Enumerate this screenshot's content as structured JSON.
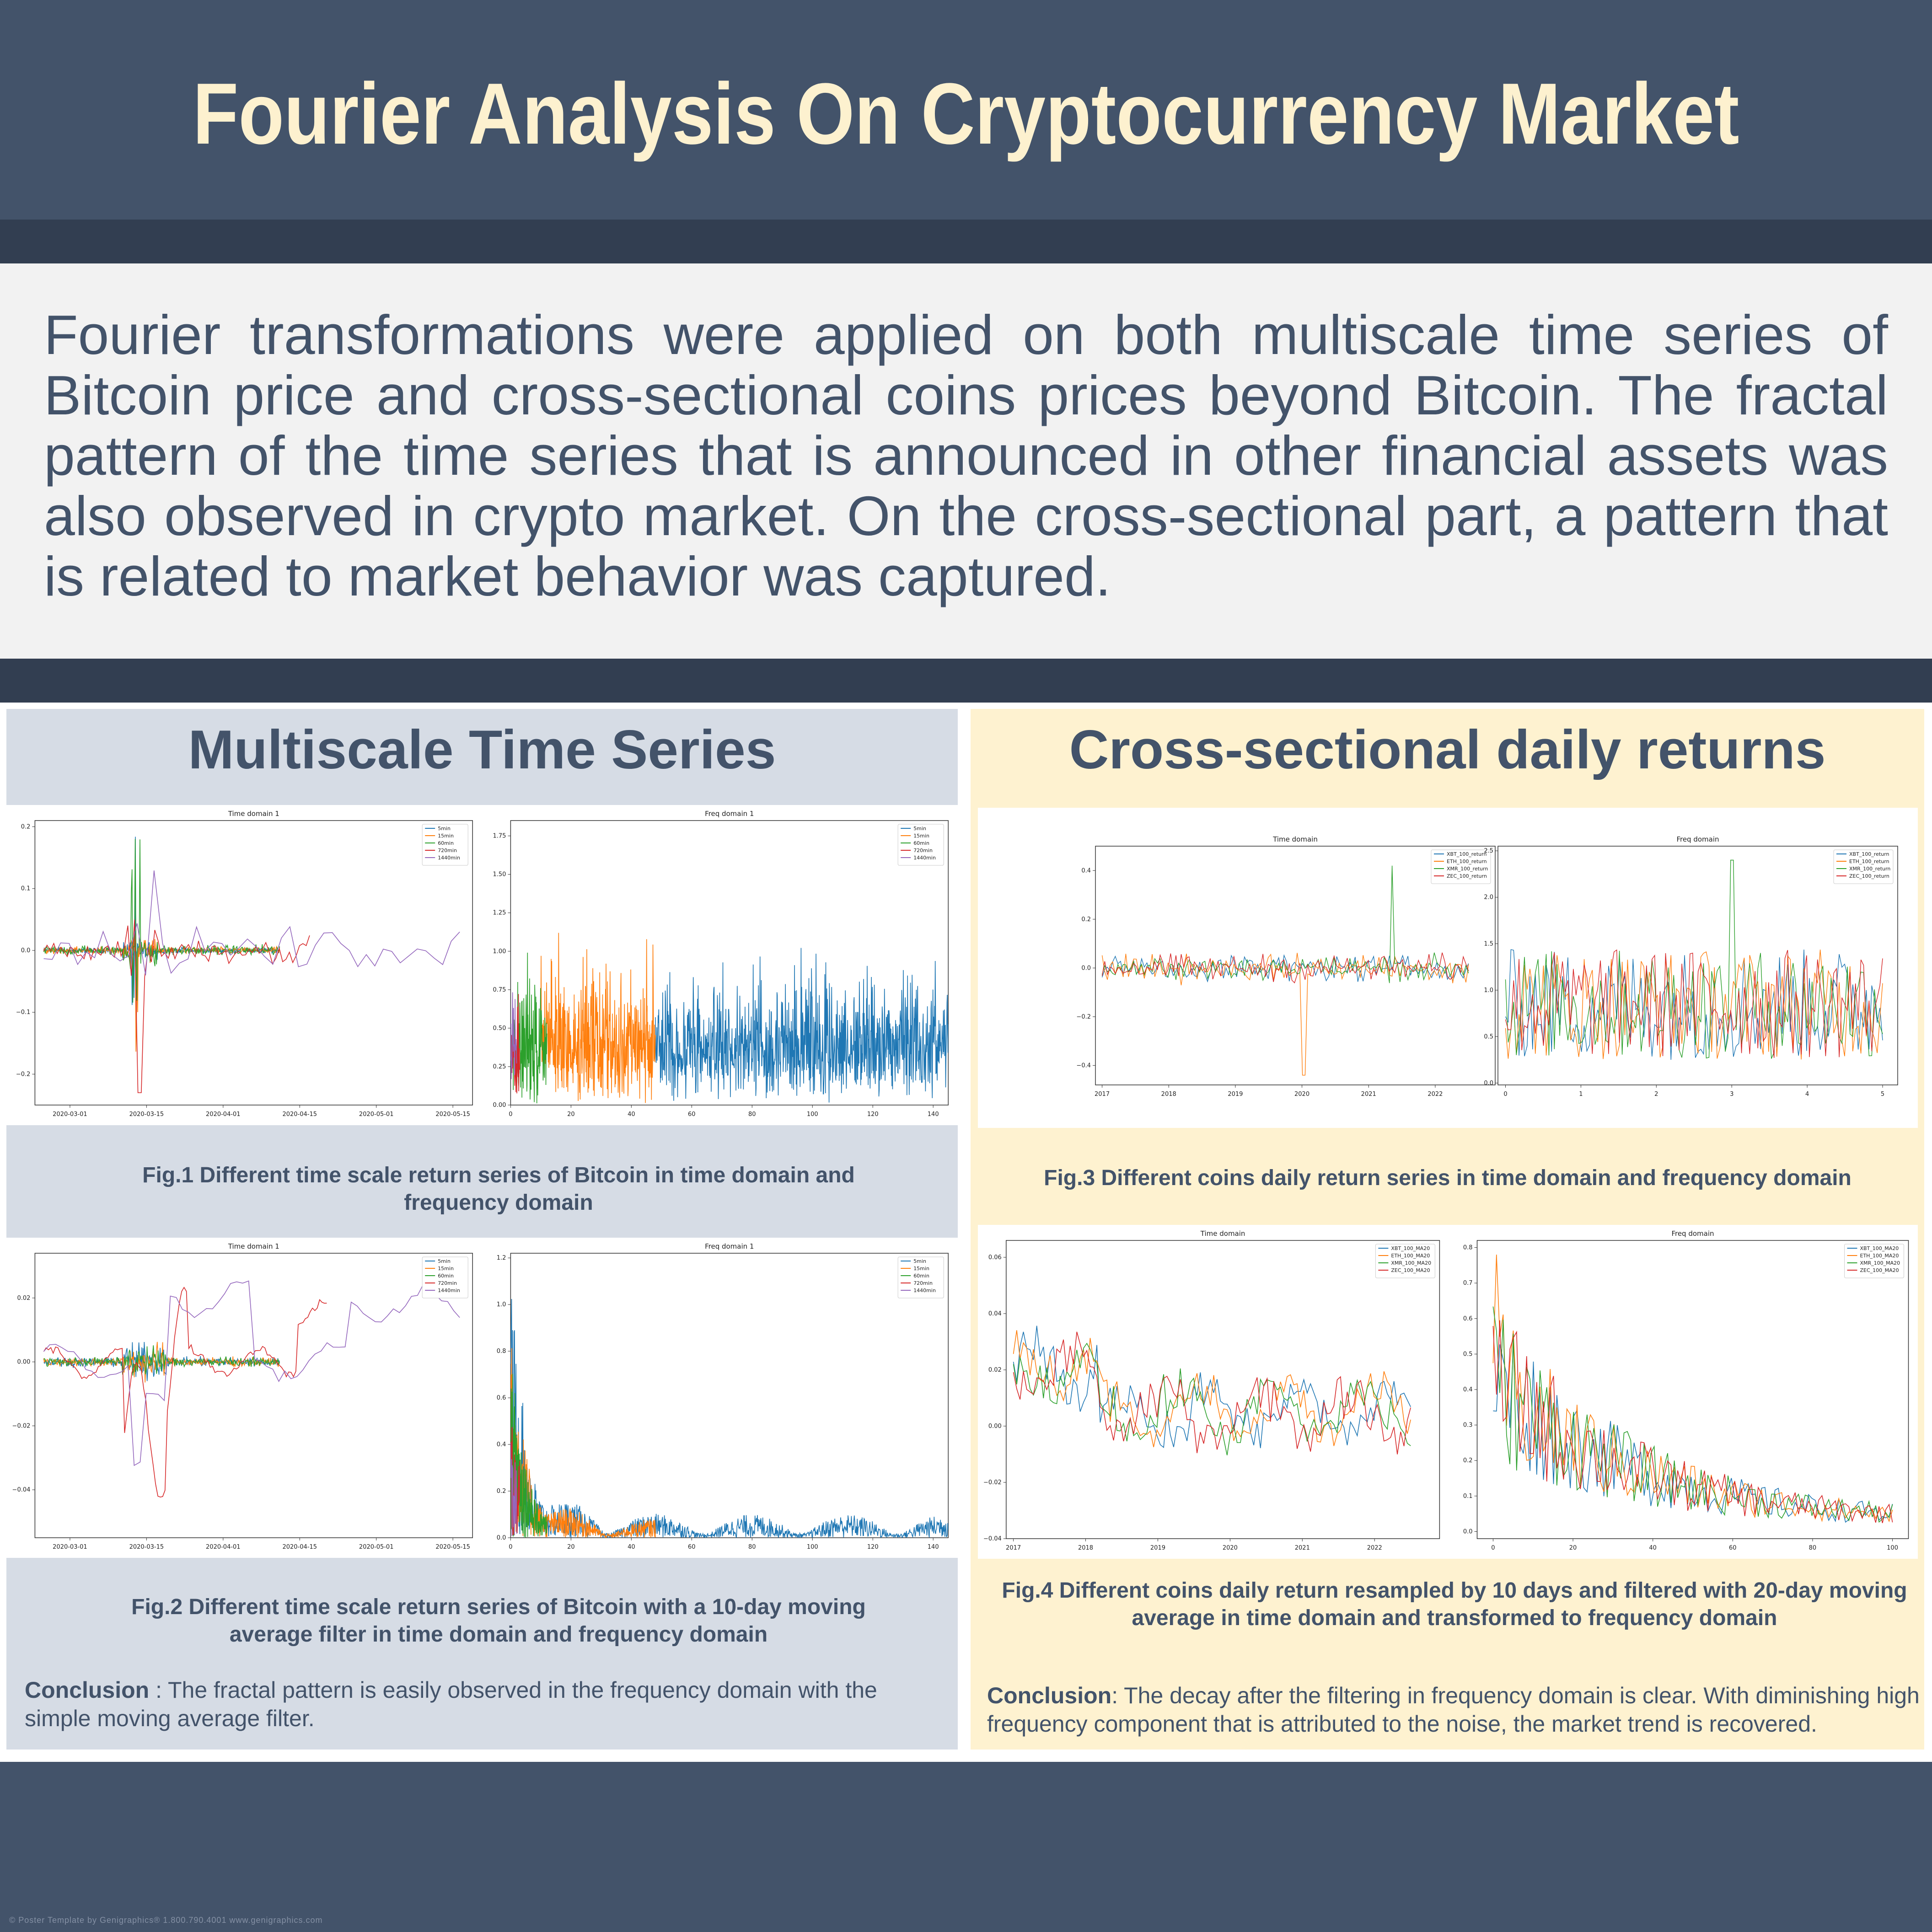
{
  "title": "Fourier Analysis On Cryptocurrency Market",
  "abstract": "Fourier transformations were applied on both multiscale time series of Bitcoin price and cross-sectional coins prices beyond Bitcoin. The fractal pattern of the time series that is announced in other financial assets was also observed in crypto market. On the cross-sectional part, a pattern that is related to market behavior was captured.",
  "left": {
    "heading": "Multiscale Time Series",
    "fig1_caption": "Fig.1 Different time scale return series of Bitcoin in time domain and frequency domain",
    "fig2_caption": "Fig.2 Different time scale return series of Bitcoin with a 10-day moving average filter in time domain and frequency domain",
    "conclusion_label": "Conclusion",
    "conclusion_text": " : The fractal pattern is easily observed in the frequency domain with the simple moving average filter."
  },
  "right": {
    "heading": "Cross-sectional daily returns",
    "fig3_caption": "Fig.3 Different coins daily return series in time domain and frequency domain",
    "fig4_caption": "Fig.4 Different coins daily return resampled by 10 days and filtered with 20-day moving average in time domain and transformed to frequency domain",
    "conclusion_label": "Conclusion",
    "conclusion_text": ": The decay after the filtering in frequency domain is clear. With diminishing high frequency component that is attributed to the noise,  the market trend is recovered."
  },
  "footer": "© Poster Template by Genigraphics® 1.800.790.4001 www.genigraphics.com",
  "colors": {
    "header_bg": "#43536a",
    "stripe": "#323e51",
    "title": "#fdf1cf",
    "left_panel": "#d6dce5",
    "right_panel": "#fef2d0",
    "c_blue": "#1f77b4",
    "c_orange": "#ff7f0e",
    "c_green": "#2ca02c",
    "c_red": "#d62728",
    "c_purple": "#9467bd"
  },
  "chart_data": [
    {
      "id": "fig1_time",
      "type": "line",
      "title": "Time domain 1",
      "x_type": "date",
      "xticks": [
        "2020-03-01",
        "2020-03-15",
        "2020-04-01",
        "2020-04-15",
        "2020-05-01",
        "2020-05-15"
      ],
      "yticks": [
        "0.2",
        "0.1",
        "0.0",
        "−0.1",
        "−0.2"
      ],
      "ylim": [
        -0.25,
        0.21
      ],
      "legend": "top-right",
      "series": [
        {
          "name": "5min",
          "color": "#1f77b4"
        },
        {
          "name": "15min",
          "color": "#ff7f0e"
        },
        {
          "name": "60min",
          "color": "#2ca02c"
        },
        {
          "name": "720min",
          "color": "#d62728"
        },
        {
          "name": "1440min",
          "color": "#9467bd"
        }
      ]
    },
    {
      "id": "fig1_freq",
      "type": "line",
      "title": "Freq domain 1",
      "xticks": [
        "0",
        "20",
        "40",
        "60",
        "80",
        "100",
        "120",
        "140"
      ],
      "xlim": [
        0,
        145
      ],
      "yticks": [
        "1.75",
        "1.50",
        "1.25",
        "1.00",
        "0.75",
        "0.50",
        "0.25",
        "0.00"
      ],
      "ylim": [
        0,
        1.85
      ],
      "legend": "top-right",
      "series": [
        {
          "name": "5min",
          "color": "#1f77b4"
        },
        {
          "name": "15min",
          "color": "#ff7f0e"
        },
        {
          "name": "60min",
          "color": "#2ca02c"
        },
        {
          "name": "720min",
          "color": "#d62728"
        },
        {
          "name": "1440min",
          "color": "#9467bd"
        }
      ]
    },
    {
      "id": "fig2_time",
      "type": "line",
      "title": "Time domain 1",
      "x_type": "date",
      "xticks": [
        "2020-03-01",
        "2020-03-15",
        "2020-04-01",
        "2020-04-15",
        "2020-05-01",
        "2020-05-15"
      ],
      "yticks": [
        "0.02",
        "0.00",
        "−0.02",
        "−0.04"
      ],
      "ylim": [
        -0.055,
        0.034
      ],
      "legend": "top-right",
      "series": [
        {
          "name": "5min",
          "color": "#1f77b4"
        },
        {
          "name": "15min",
          "color": "#ff7f0e"
        },
        {
          "name": "60min",
          "color": "#2ca02c"
        },
        {
          "name": "720min",
          "color": "#d62728"
        },
        {
          "name": "1440min",
          "color": "#9467bd"
        }
      ]
    },
    {
      "id": "fig2_freq",
      "type": "line",
      "title": "Freq domain 1",
      "xticks": [
        "0",
        "20",
        "40",
        "60",
        "80",
        "100",
        "120",
        "140"
      ],
      "xlim": [
        0,
        145
      ],
      "yticks": [
        "1.2",
        "1.0",
        "0.8",
        "0.6",
        "0.4",
        "0.2",
        "0.0"
      ],
      "ylim": [
        0,
        1.22
      ],
      "legend": "top-right",
      "series": [
        {
          "name": "5min",
          "color": "#1f77b4"
        },
        {
          "name": "15min",
          "color": "#ff7f0e"
        },
        {
          "name": "60min",
          "color": "#2ca02c"
        },
        {
          "name": "720min",
          "color": "#d62728"
        },
        {
          "name": "1440min",
          "color": "#9467bd"
        }
      ]
    },
    {
      "id": "fig3_time",
      "type": "line",
      "title": "Time domain",
      "x_type": "year",
      "xticks": [
        "2017",
        "2018",
        "2019",
        "2020",
        "2021",
        "2022"
      ],
      "yticks": [
        "0.4",
        "0.2",
        "0.0",
        "−0.2",
        "−0.4"
      ],
      "ylim": [
        -0.48,
        0.5
      ],
      "legend": "top-right",
      "series": [
        {
          "name": "XBT_100_return",
          "color": "#1f77b4"
        },
        {
          "name": "ETH_100_return",
          "color": "#ff7f0e"
        },
        {
          "name": "XMR_100_return",
          "color": "#2ca02c"
        },
        {
          "name": "ZEC_100_return",
          "color": "#d62728"
        }
      ]
    },
    {
      "id": "fig3_freq",
      "type": "line",
      "title": "Freq domain",
      "xticks": [
        "0",
        "1",
        "2",
        "3",
        "4",
        "5"
      ],
      "xlim": [
        -0.1,
        5.2
      ],
      "yticks": [
        "2.5",
        "2.0",
        "1.5",
        "1.0",
        "0.5",
        "0.0"
      ],
      "ylim": [
        -0.02,
        2.55
      ],
      "legend": "top-right",
      "series": [
        {
          "name": "XBT_100_return",
          "color": "#1f77b4"
        },
        {
          "name": "ETH_100_return",
          "color": "#ff7f0e"
        },
        {
          "name": "XMR_100_return",
          "color": "#2ca02c"
        },
        {
          "name": "ZEC_100_return",
          "color": "#d62728"
        }
      ]
    },
    {
      "id": "fig4_time",
      "type": "line",
      "title": "Time domain",
      "x_type": "year",
      "xticks": [
        "2017",
        "2018",
        "2019",
        "2020",
        "2021",
        "2022"
      ],
      "yticks": [
        "0.06",
        "0.04",
        "0.02",
        "0.00",
        "−0.02",
        "−0.04"
      ],
      "ylim": [
        -0.04,
        0.066
      ],
      "legend": "top-right",
      "series": [
        {
          "name": "XBT_100_MA20",
          "color": "#1f77b4"
        },
        {
          "name": "ETH_100_MA20",
          "color": "#ff7f0e"
        },
        {
          "name": "XMR_100_MA20",
          "color": "#2ca02c"
        },
        {
          "name": "ZEC_100_MA20",
          "color": "#d62728"
        }
      ]
    },
    {
      "id": "fig4_freq",
      "type": "line",
      "title": "Freq domain",
      "xticks": [
        "0",
        "20",
        "40",
        "60",
        "80",
        "100"
      ],
      "xlim": [
        -4,
        104
      ],
      "yticks": [
        "0.8",
        "0.7",
        "0.6",
        "0.5",
        "0.4",
        "0.3",
        "0.2",
        "0.1",
        "0.0"
      ],
      "ylim": [
        -0.02,
        0.82
      ],
      "legend": "top-right",
      "series": [
        {
          "name": "XBT_100_MA20",
          "color": "#1f77b4"
        },
        {
          "name": "ETH_100_MA20",
          "color": "#ff7f0e"
        },
        {
          "name": "XMR_100_MA20",
          "color": "#2ca02c"
        },
        {
          "name": "ZEC_100_MA20",
          "color": "#d62728"
        }
      ]
    }
  ]
}
